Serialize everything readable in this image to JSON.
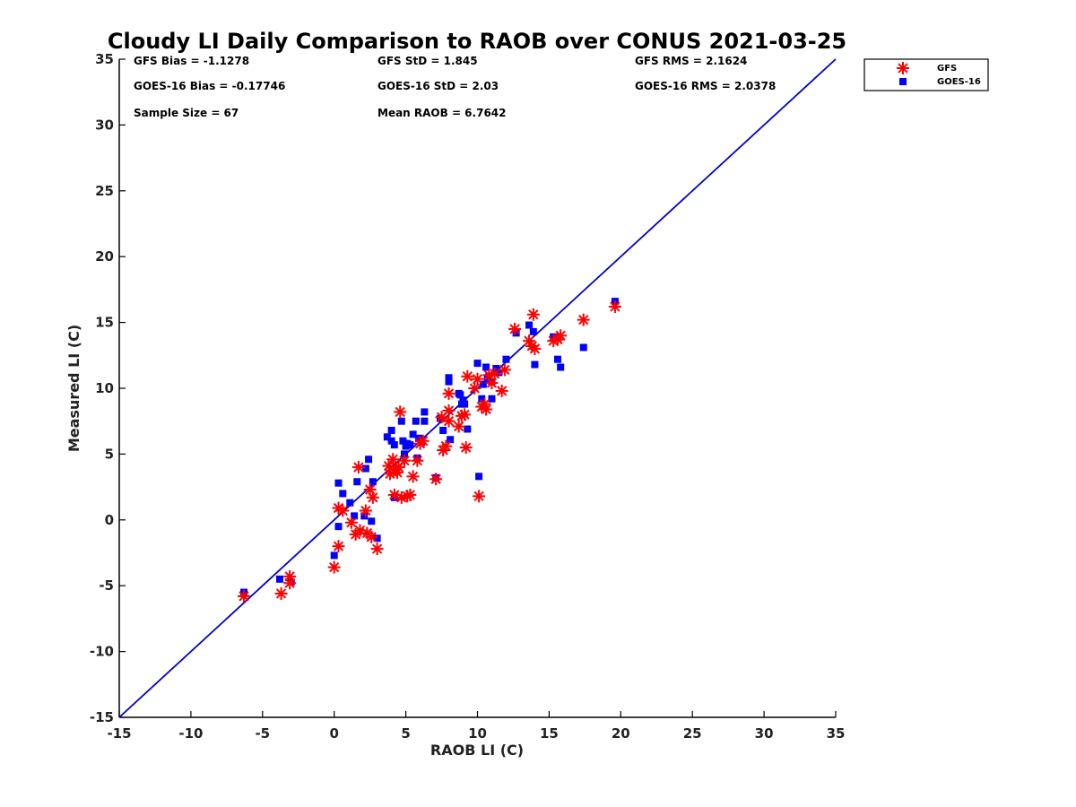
{
  "chart_data": {
    "type": "scatter",
    "title": "Cloudy LI Daily Comparison to RAOB over CONUS 2021-03-25",
    "xlabel": "RAOB LI (C)",
    "ylabel": "Measured LI (C)",
    "xlim": [
      -15,
      35
    ],
    "ylim": [
      -15,
      35
    ],
    "xticks": [
      -15,
      -10,
      -5,
      0,
      5,
      10,
      15,
      20,
      25,
      30,
      35
    ],
    "yticks": [
      -15,
      -10,
      -5,
      0,
      5,
      10,
      15,
      20,
      25,
      30,
      35
    ],
    "grid": false,
    "legend_position": "top-right outside",
    "reference_line": {
      "from": [
        -15,
        -15
      ],
      "to": [
        35,
        35
      ],
      "color": "#0000cc"
    },
    "stats": [
      [
        "GFS Bias = -1.1278",
        "GFS StD = 1.845",
        "GFS RMS = 2.1624"
      ],
      [
        "GOES-16 Bias = -0.17746",
        "GOES-16 StD = 2.03",
        "GOES-16 RMS = 2.0378"
      ],
      [
        "Sample Size = 67",
        "Mean RAOB = 6.7642",
        ""
      ]
    ],
    "series": [
      {
        "name": "GFS",
        "marker": "asterisk",
        "color": "#ff0000",
        "points": [
          [
            -6.3,
            -5.8
          ],
          [
            -3.7,
            -5.6
          ],
          [
            -3.1,
            -4.3
          ],
          [
            -3.1,
            -4.8
          ],
          [
            0.0,
            -3.6
          ],
          [
            0.3,
            -2.0
          ],
          [
            0.3,
            0.9
          ],
          [
            0.6,
            0.7
          ],
          [
            1.2,
            -0.2
          ],
          [
            1.5,
            -1.1
          ],
          [
            1.7,
            4.0
          ],
          [
            1.8,
            -0.8
          ],
          [
            2.2,
            0.7
          ],
          [
            2.3,
            -1.0
          ],
          [
            2.5,
            2.3
          ],
          [
            2.7,
            1.7
          ],
          [
            2.6,
            -1.3
          ],
          [
            3.0,
            -2.2
          ],
          [
            3.8,
            4.1
          ],
          [
            3.9,
            3.5
          ],
          [
            4.1,
            4.6
          ],
          [
            4.2,
            1.9
          ],
          [
            4.4,
            3.6
          ],
          [
            4.5,
            4.0
          ],
          [
            4.6,
            8.2
          ],
          [
            4.7,
            1.7
          ],
          [
            4.9,
            4.5
          ],
          [
            5.1,
            1.8
          ],
          [
            5.3,
            1.9
          ],
          [
            5.5,
            3.3
          ],
          [
            5.8,
            4.5
          ],
          [
            6.0,
            5.8
          ],
          [
            6.2,
            6.0
          ],
          [
            7.1,
            3.1
          ],
          [
            7.5,
            7.8
          ],
          [
            7.6,
            5.3
          ],
          [
            7.8,
            5.6
          ],
          [
            8.0,
            9.6
          ],
          [
            8.0,
            7.5
          ],
          [
            8.0,
            8.3
          ],
          [
            8.7,
            7.1
          ],
          [
            8.9,
            7.9
          ],
          [
            9.1,
            8.0
          ],
          [
            9.2,
            5.5
          ],
          [
            9.3,
            10.9
          ],
          [
            9.8,
            10.0
          ],
          [
            10.0,
            10.7
          ],
          [
            10.1,
            1.8
          ],
          [
            10.3,
            8.6
          ],
          [
            10.5,
            8.8
          ],
          [
            10.6,
            8.4
          ],
          [
            10.8,
            11.0
          ],
          [
            11.0,
            10.4
          ],
          [
            11.2,
            11.1
          ],
          [
            11.7,
            9.8
          ],
          [
            11.9,
            11.4
          ],
          [
            12.6,
            14.5
          ],
          [
            13.6,
            13.6
          ],
          [
            13.8,
            13.2
          ],
          [
            13.9,
            15.6
          ],
          [
            14.0,
            13.0
          ],
          [
            15.3,
            13.6
          ],
          [
            15.6,
            13.7
          ],
          [
            15.8,
            14.0
          ],
          [
            17.4,
            15.2
          ],
          [
            19.6,
            16.2
          ],
          [
            4.3,
            3.8
          ]
        ]
      },
      {
        "name": "GOES-16",
        "marker": "square",
        "color": "#0000ff",
        "points": [
          [
            -6.3,
            -5.5
          ],
          [
            -3.8,
            -4.5
          ],
          [
            -3.0,
            -4.7
          ],
          [
            0.0,
            -2.7
          ],
          [
            0.3,
            -0.5
          ],
          [
            0.3,
            2.8
          ],
          [
            0.6,
            2.0
          ],
          [
            1.1,
            1.3
          ],
          [
            1.4,
            0.3
          ],
          [
            1.6,
            2.9
          ],
          [
            2.1,
            0.3
          ],
          [
            2.2,
            3.9
          ],
          [
            2.4,
            4.6
          ],
          [
            2.6,
            -0.1
          ],
          [
            2.7,
            2.9
          ],
          [
            3.0,
            -1.4
          ],
          [
            3.7,
            6.3
          ],
          [
            4.0,
            6.8
          ],
          [
            4.0,
            6.0
          ],
          [
            4.2,
            5.7
          ],
          [
            4.2,
            1.7
          ],
          [
            4.7,
            7.5
          ],
          [
            4.8,
            6.0
          ],
          [
            5.0,
            5.6
          ],
          [
            5.1,
            5.8
          ],
          [
            5.3,
            5.7
          ],
          [
            5.5,
            6.5
          ],
          [
            5.7,
            7.5
          ],
          [
            5.8,
            4.7
          ],
          [
            6.3,
            8.2
          ],
          [
            6.3,
            7.5
          ],
          [
            7.1,
            3.2
          ],
          [
            7.4,
            7.7
          ],
          [
            7.6,
            6.8
          ],
          [
            8.0,
            10.5
          ],
          [
            8.0,
            10.8
          ],
          [
            8.1,
            6.1
          ],
          [
            8.7,
            9.6
          ],
          [
            8.8,
            9.5
          ],
          [
            8.9,
            8.8
          ],
          [
            9.1,
            8.8
          ],
          [
            9.3,
            6.9
          ],
          [
            10.0,
            11.9
          ],
          [
            10.1,
            3.3
          ],
          [
            10.3,
            9.2
          ],
          [
            10.4,
            10.3
          ],
          [
            10.6,
            11.6
          ],
          [
            10.7,
            10.7
          ],
          [
            11.0,
            9.2
          ],
          [
            11.0,
            10.5
          ],
          [
            11.3,
            11.5
          ],
          [
            11.5,
            11.2
          ],
          [
            12.0,
            12.2
          ],
          [
            12.7,
            14.2
          ],
          [
            13.6,
            14.8
          ],
          [
            13.9,
            14.3
          ],
          [
            14.0,
            11.8
          ],
          [
            15.3,
            13.9
          ],
          [
            15.6,
            12.2
          ],
          [
            15.8,
            11.6
          ],
          [
            17.4,
            13.1
          ],
          [
            19.6,
            16.6
          ],
          [
            5.9,
            6.2
          ],
          [
            6.1,
            5.9
          ],
          [
            4.9,
            5.0
          ],
          [
            9.0,
            9.1
          ],
          [
            10.8,
            10.9
          ]
        ]
      }
    ]
  }
}
